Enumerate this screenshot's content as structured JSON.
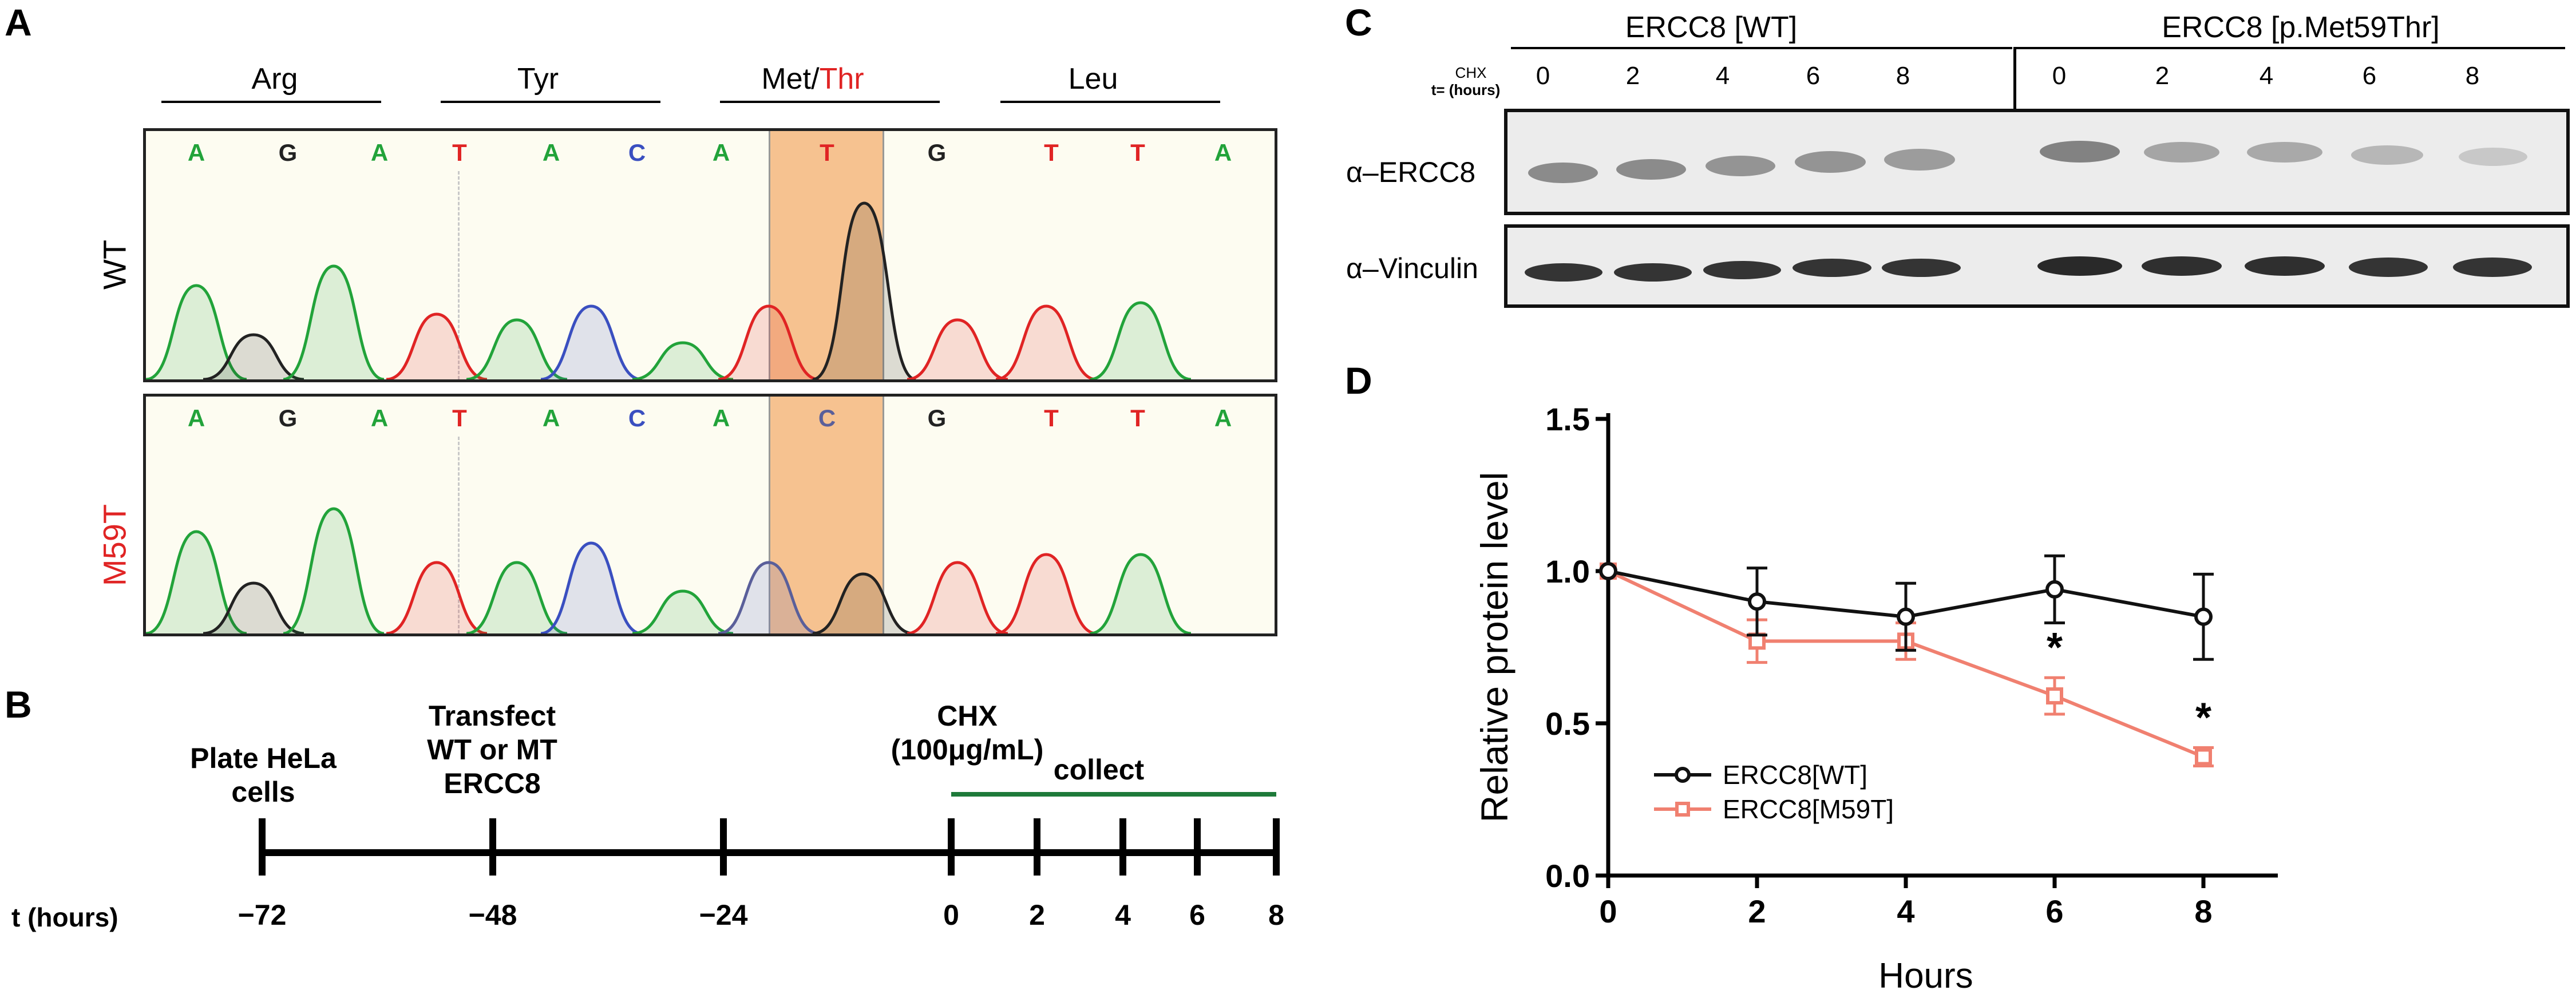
{
  "panels": {
    "a": "A",
    "b": "B",
    "c": "C",
    "d": "D"
  },
  "panel_a": {
    "codons": [
      {
        "name": "Arg"
      },
      {
        "name": "Tyr"
      },
      {
        "name": "Met/Thr",
        "prefix": "Met/",
        "suffix": "Thr"
      },
      {
        "name": "Leu"
      }
    ],
    "rows": [
      {
        "label": "WT",
        "bases": [
          "A",
          "G",
          "A",
          "T",
          "A",
          "C",
          "A",
          "T",
          "G",
          "T",
          "T",
          "A"
        ]
      },
      {
        "label": "M59T",
        "bases": [
          "A",
          "G",
          "A",
          "T",
          "A",
          "C",
          "A",
          "C",
          "G",
          "T",
          "T",
          "A"
        ]
      }
    ],
    "colors": {
      "A": "#22a33a",
      "G": "#222222",
      "T": "#e02424",
      "C": "#3a4fc0",
      "highlight": "#f5b880",
      "mutant_label": "#e02424"
    }
  },
  "panel_b": {
    "events": [
      {
        "id": "plate",
        "text": "Plate HeLa\ncells"
      },
      {
        "id": "transfect",
        "text": "Transfect\nWT or MT\nERCC8"
      },
      {
        "id": "chx",
        "text": "CHX\n(100μg/mL)"
      },
      {
        "id": "collect",
        "text": "collect"
      }
    ],
    "axis_label": "t (hours)",
    "ticks": [
      "−72",
      "−48",
      "−24",
      "0",
      "2",
      "4",
      "6",
      "8"
    ],
    "collect_color": "#1e7a3a"
  },
  "panel_c": {
    "groups": [
      "ERCC8 [WT]",
      "ERCC8 [p.Met59Thr]"
    ],
    "chx_label": "CHX",
    "time_label": "t= (hours)",
    "lanes": [
      "0",
      "2",
      "4",
      "6",
      "8",
      "0",
      "2",
      "4",
      "6",
      "8"
    ],
    "blots": [
      "α–ERCC8",
      "α–Vinculin"
    ]
  },
  "chart_data": {
    "type": "line",
    "title": "",
    "xlabel": "Hours",
    "ylabel": "Relative protein level",
    "xlim": [
      0,
      9
    ],
    "ylim": [
      0,
      1.5
    ],
    "xticks": [
      "0",
      "2",
      "4",
      "6",
      "8"
    ],
    "yticks": [
      "0.0",
      "0.5",
      "1.0",
      "1.5"
    ],
    "x": [
      0,
      2,
      4,
      6,
      8
    ],
    "series": [
      {
        "name": "ERCC8[WT]",
        "color": "#111111",
        "marker": "circle",
        "values": [
          1.0,
          0.9,
          0.85,
          0.94,
          0.85
        ],
        "errors": [
          0.0,
          0.11,
          0.11,
          0.11,
          0.14
        ]
      },
      {
        "name": "ERCC8[M59T]",
        "color": "#f08070",
        "marker": "square",
        "values": [
          1.0,
          0.77,
          0.77,
          0.59,
          0.39
        ],
        "errors": [
          0.0,
          0.07,
          0.06,
          0.06,
          0.03
        ]
      }
    ],
    "annotations": [
      {
        "x": 6,
        "text": "*"
      },
      {
        "x": 8,
        "text": "*"
      }
    ],
    "legend_position": "bottom-left"
  }
}
